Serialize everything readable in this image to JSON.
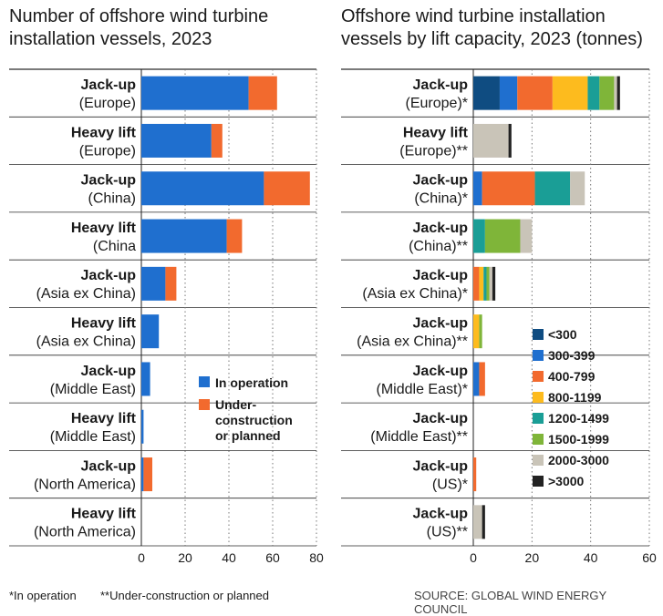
{
  "titles": {
    "left": "Number of offshore wind turbine installation vessels, 2023",
    "right": "Offshore wind turbine installation vessels by lift capacity, 2023 (tonnes)"
  },
  "footer": {
    "note1": "*In operation",
    "note2": "**Under-construction or planned",
    "source": "SOURCE: GLOBAL WIND ENERGY COUNCIL"
  },
  "colors": {
    "in_operation": "#1f6fcf",
    "planned": "#f26a2e",
    "lt300": "#0f4c81",
    "c300_399": "#1f6fcf",
    "c400_799": "#f26a2e",
    "c800_1199": "#fdbb1e",
    "c1200_1499": "#1a9e96",
    "c1500_1999": "#7fb539",
    "c2000_3000": "#c9c4b8",
    "gt3000": "#222222"
  },
  "chart_data": [
    {
      "type": "bar",
      "orientation": "horizontal",
      "stacked": true,
      "title": "Number of offshore wind turbine installation vessels, 2023",
      "categories": [
        [
          "Jack-up",
          "(Europe)"
        ],
        [
          "Heavy lift",
          "(Europe)"
        ],
        [
          "Jack-up",
          "(China)"
        ],
        [
          "Heavy lift",
          "(China"
        ],
        [
          "Jack-up",
          "(Asia ex China)"
        ],
        [
          "Heavy lift",
          "(Asia ex China)"
        ],
        [
          "Jack-up",
          "(Middle East)"
        ],
        [
          "Heavy lift",
          "(Middle East)"
        ],
        [
          "Jack-up",
          "(North America)"
        ],
        [
          "Heavy lift",
          "(North America)"
        ]
      ],
      "series": [
        {
          "name": "In operation",
          "color": "#1f6fcf",
          "values": [
            49,
            32,
            56,
            39,
            11,
            8,
            4,
            1,
            1,
            0
          ]
        },
        {
          "name": "Under-construction or planned",
          "color": "#f26a2e",
          "values": [
            13,
            5,
            21,
            7,
            5,
            0,
            0,
            0,
            4,
            0
          ]
        }
      ],
      "xlim": [
        0,
        80
      ],
      "xticks": [
        0,
        20,
        40,
        60,
        80
      ],
      "grid": true,
      "legend": "bottom-right"
    },
    {
      "type": "bar",
      "orientation": "horizontal",
      "stacked": true,
      "title": "Offshore wind turbine installation vessels by lift capacity, 2023 (tonnes)",
      "categories": [
        [
          "Jack-up",
          "(Europe)*"
        ],
        [
          "Heavy lift",
          "(Europe)**"
        ],
        [
          "Jack-up",
          "(China)*"
        ],
        [
          "Jack-up",
          "(China)**"
        ],
        [
          "Jack-up",
          "(Asia ex China)*"
        ],
        [
          "Jack-up",
          "(Asia ex China)**"
        ],
        [
          "Jack-up",
          "(Middle East)*"
        ],
        [
          "Jack-up",
          "(Middle East)**"
        ],
        [
          "Jack-up",
          "(US)*"
        ],
        [
          "Jack-up",
          "(US)**"
        ]
      ],
      "series": [
        {
          "name": "<300",
          "color": "#0f4c81",
          "values": [
            9,
            0,
            0,
            0,
            0,
            0,
            0,
            0,
            0,
            0
          ]
        },
        {
          "name": "300-399",
          "color": "#1f6fcf",
          "values": [
            6,
            0,
            3,
            0,
            0,
            0,
            2,
            0,
            0,
            0
          ]
        },
        {
          "name": "400-799",
          "color": "#f26a2e",
          "values": [
            12,
            0,
            18,
            0,
            2,
            0,
            2,
            0,
            1,
            0
          ]
        },
        {
          "name": "800-1199",
          "color": "#fdbb1e",
          "values": [
            12,
            0,
            0,
            0,
            1.5,
            2,
            0,
            0,
            0,
            0
          ]
        },
        {
          "name": "1200-1499",
          "color": "#1a9e96",
          "values": [
            4,
            0,
            12,
            4,
            1,
            0,
            0,
            0,
            0,
            0
          ]
        },
        {
          "name": "1500-1999",
          "color": "#7fb539",
          "values": [
            5,
            0,
            0,
            12,
            1,
            1,
            0,
            0,
            0,
            0
          ]
        },
        {
          "name": "2000-3000",
          "color": "#c9c4b8",
          "values": [
            1,
            12,
            5,
            4,
            1,
            0,
            0,
            0,
            0,
            3
          ]
        },
        {
          "name": ">3000",
          "color": "#222222",
          "values": [
            1,
            1,
            0,
            0,
            1,
            0,
            0,
            0,
            0,
            1
          ]
        }
      ],
      "xlim": [
        0,
        60
      ],
      "xticks": [
        0,
        20,
        40,
        60
      ],
      "grid": true,
      "legend": "right"
    }
  ]
}
